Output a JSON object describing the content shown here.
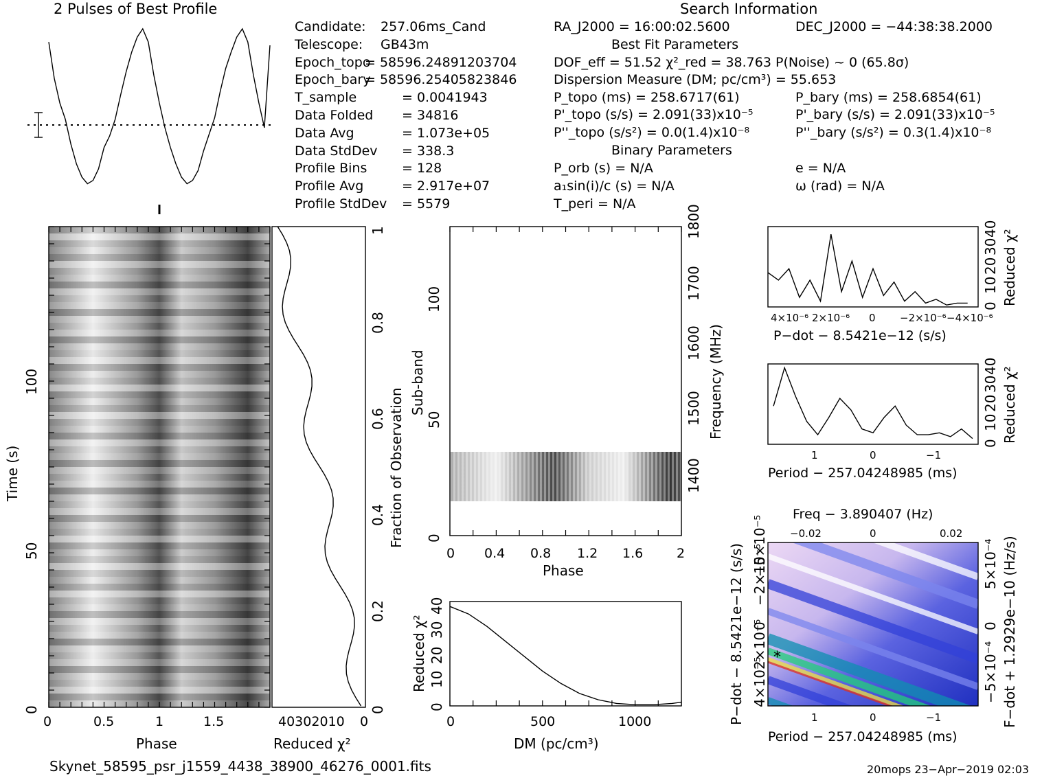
{
  "profile": {
    "title": "2 Pulses of Best Profile"
  },
  "info": {
    "left": [
      {
        "label": "Candidate:",
        "value": "257.06ms_Cand"
      },
      {
        "label": "Telescope:",
        "value": "GB43m"
      },
      {
        "label": "Epoch_topo",
        "value": "= 58596.24891203704"
      },
      {
        "label": "Epoch_bary",
        "value": "= 58596.25405823846"
      },
      {
        "label": "T_sample",
        "value": "=  0.0041943"
      },
      {
        "label": "Data Folded",
        "value": "=  34816"
      },
      {
        "label": "Data Avg",
        "value": "=  1.073e+05"
      },
      {
        "label": "Data StdDev",
        "value": "=  338.3"
      },
      {
        "label": "Profile Bins",
        "value": "=  128"
      },
      {
        "label": "Profile Avg",
        "value": "=  2.917e+07"
      },
      {
        "label": "Profile StdDev",
        "value": "=  5579"
      }
    ],
    "search_title": "Search Information",
    "ra": "RA_J2000 = 16:00:02.5600",
    "dec": "DEC_J2000 = −44:38:38.2000",
    "best_fit_title": "Best Fit Parameters",
    "dof": "DOF_eff = 51.52  χ²_red = 38.763  P(Noise) ~ 0   (65.8σ)",
    "dm": "Dispersion Measure (DM; pc/cm³) = 55.653",
    "p_topo": "P_topo (ms) =  258.6717(61)",
    "p_bary": "P_bary (ms) =  258.6854(61)",
    "pd_topo": "P'_topo (s/s) =  2.091(33)x10⁻⁵",
    "pd_bary": "P'_bary (s/s) =  2.091(33)x10⁻⁵",
    "pdd_topo": "P''_topo (s/s²) = 0.0(1.4)x10⁻⁸",
    "pdd_bary": "P''_bary (s/s²) =  0.3(1.4)x10⁻⁸",
    "binary_title": "Binary Parameters",
    "p_orb": "P_orb (s) = N/A",
    "e": "e = N/A",
    "a1": "a₁sin(i)/c (s) = N/A",
    "omega": "ω (rad) = N/A",
    "t_peri": "T_peri = N/A"
  },
  "time_phase": {
    "xlabel": "Phase",
    "ylabel": "Time (s)",
    "xticks": [
      "0",
      "0.5",
      "1",
      "1.5"
    ],
    "yticks": [
      "0",
      "50",
      "100"
    ]
  },
  "chi_vs_time": {
    "xlabel": "Reduced χ²",
    "xticks": [
      "40302010",
      "0"
    ],
    "ylabel": "Fraction of Observation",
    "yticks": [
      "0",
      "0.2",
      "0.4",
      "0.6",
      "0.8",
      "1"
    ]
  },
  "subband": {
    "xlabel": "Phase",
    "ylabel": "Sub-band",
    "xticks": [
      "0",
      "0.4",
      "0.8",
      "1.2",
      "1.6",
      "2"
    ],
    "yticks": [
      "0",
      "50",
      "100"
    ],
    "right_label": "Frequency (MHz)",
    "right_ticks": [
      "1400",
      "1500",
      "1600",
      "1700",
      "1800"
    ]
  },
  "dm_plot": {
    "xlabel": "DM (pc/cm³)",
    "ylabel": "Reduced χ²",
    "xticks": [
      "0",
      "500",
      "1000"
    ],
    "yticks": [
      "0",
      "10",
      "20",
      "30",
      "40"
    ]
  },
  "pdot_plot": {
    "xlabel": "P−dot − 8.5421e−12 (s/s)",
    "ylabel": "Reduced χ²",
    "xticks": [
      "4×10⁻⁶",
      "2×10⁻⁶",
      "0",
      "−2×10⁻⁶",
      "−4×10⁻⁶"
    ],
    "yticks": [
      "0",
      "10",
      "20",
      "30",
      "40"
    ]
  },
  "period_plot": {
    "xlabel": "Period − 257.04248985 (ms)",
    "ylabel": "Reduced χ²",
    "xticks": [
      "1",
      "0",
      "−1"
    ],
    "yticks": [
      "0",
      "10",
      "20",
      "30",
      "40"
    ]
  },
  "ppdot_map": {
    "top_label": "Freq − 3.890407 (Hz)",
    "top_ticks": [
      "−0.02",
      "0",
      "0.02"
    ],
    "xlabel": "Period − 257.04248985 (ms)",
    "xticks": [
      "1",
      "0",
      "−1"
    ],
    "ylabel": "P−dot − 8.5421e−12 (s/s)",
    "yticks": [
      "4×10⁻⁵",
      "2×10⁻⁵",
      "0",
      "−2×10⁻⁵",
      "−5×10⁻⁵"
    ],
    "right_label": "F−dot + 1.2929e−10 (Hz/s)",
    "right_ticks": [
      "−5×10⁻⁴",
      "0",
      "5×10⁻⁴"
    ]
  },
  "footer": {
    "filename": "Skynet_58595_psr_j1559_4438_38900_46276_0001.fits",
    "stamp": "20mops 23−Apr−2019 02:03"
  },
  "chart_data": [
    {
      "type": "line",
      "title": "2 Pulses of Best Profile",
      "x_phase": [
        0,
        0.05,
        0.1,
        0.15,
        0.2,
        0.25,
        0.3,
        0.35,
        0.4,
        0.45,
        0.5,
        0.55,
        0.6,
        0.65,
        0.7,
        0.75,
        0.8,
        0.85,
        0.9,
        0.95,
        1.0,
        1.05,
        1.1,
        1.15,
        1.2,
        1.25,
        1.3,
        1.35,
        1.4,
        1.45,
        1.5,
        1.55,
        1.6,
        1.65,
        1.7,
        1.75,
        1.8,
        1.85,
        1.9,
        1.95,
        2.0
      ],
      "values_norm": [
        0.92,
        0.7,
        0.55,
        0.45,
        0.3,
        0.18,
        0.1,
        0.06,
        0.08,
        0.15,
        0.28,
        0.35,
        0.45,
        0.6,
        0.74,
        0.86,
        0.95,
        1.0,
        0.92,
        0.72,
        0.55,
        0.4,
        0.28,
        0.18,
        0.1,
        0.06,
        0.08,
        0.14,
        0.26,
        0.36,
        0.46,
        0.62,
        0.76,
        0.86,
        0.95,
        1.0,
        0.92,
        0.72,
        0.55,
        0.4,
        0.9
      ]
    },
    {
      "type": "line",
      "xlabel": "DM (pc/cm³)",
      "ylabel": "Reduced χ²",
      "x": [
        0,
        100,
        200,
        300,
        400,
        500,
        600,
        700,
        800,
        900,
        1000,
        1100,
        1200,
        1250
      ],
      "y": [
        40,
        37,
        32,
        26,
        20,
        14,
        9,
        5,
        2.5,
        1,
        0.5,
        0.5,
        1,
        1.5
      ],
      "xlim": [
        0,
        1250
      ],
      "ylim": [
        0,
        42
      ]
    },
    {
      "type": "line",
      "xlabel": "P−dot − 8.5421e−12 (s/s)",
      "ylabel": "Reduced χ²",
      "x": [
        5e-06,
        4.5e-06,
        4e-06,
        3.5e-06,
        3e-06,
        2.5e-06,
        2e-06,
        1.5e-06,
        1e-06,
        5e-07,
        0,
        -5e-07,
        -1e-06,
        -1.5e-06,
        -2e-06,
        -2.5e-06,
        -3e-06,
        -3.5e-06,
        -4e-06,
        -4.5e-06
      ],
      "y": [
        18,
        14,
        20,
        5,
        14,
        3,
        38,
        8,
        24,
        5,
        20,
        6,
        13,
        3,
        8,
        2,
        4,
        1,
        2,
        2
      ],
      "ylim": [
        0,
        42
      ]
    },
    {
      "type": "line",
      "xlabel": "Period − 257.04248985 (ms)",
      "ylabel": "Reduced χ²",
      "x": [
        1.8,
        1.6,
        1.4,
        1.2,
        1.0,
        0.8,
        0.6,
        0.4,
        0.2,
        0,
        -0.2,
        -0.4,
        -0.6,
        -0.8,
        -1.0,
        -1.2,
        -1.4,
        -1.6,
        -1.8
      ],
      "y": [
        20,
        40,
        25,
        12,
        5,
        14,
        24,
        18,
        8,
        6,
        14,
        20,
        10,
        5,
        5,
        6,
        4,
        8,
        3
      ],
      "ylim": [
        0,
        42
      ]
    }
  ]
}
